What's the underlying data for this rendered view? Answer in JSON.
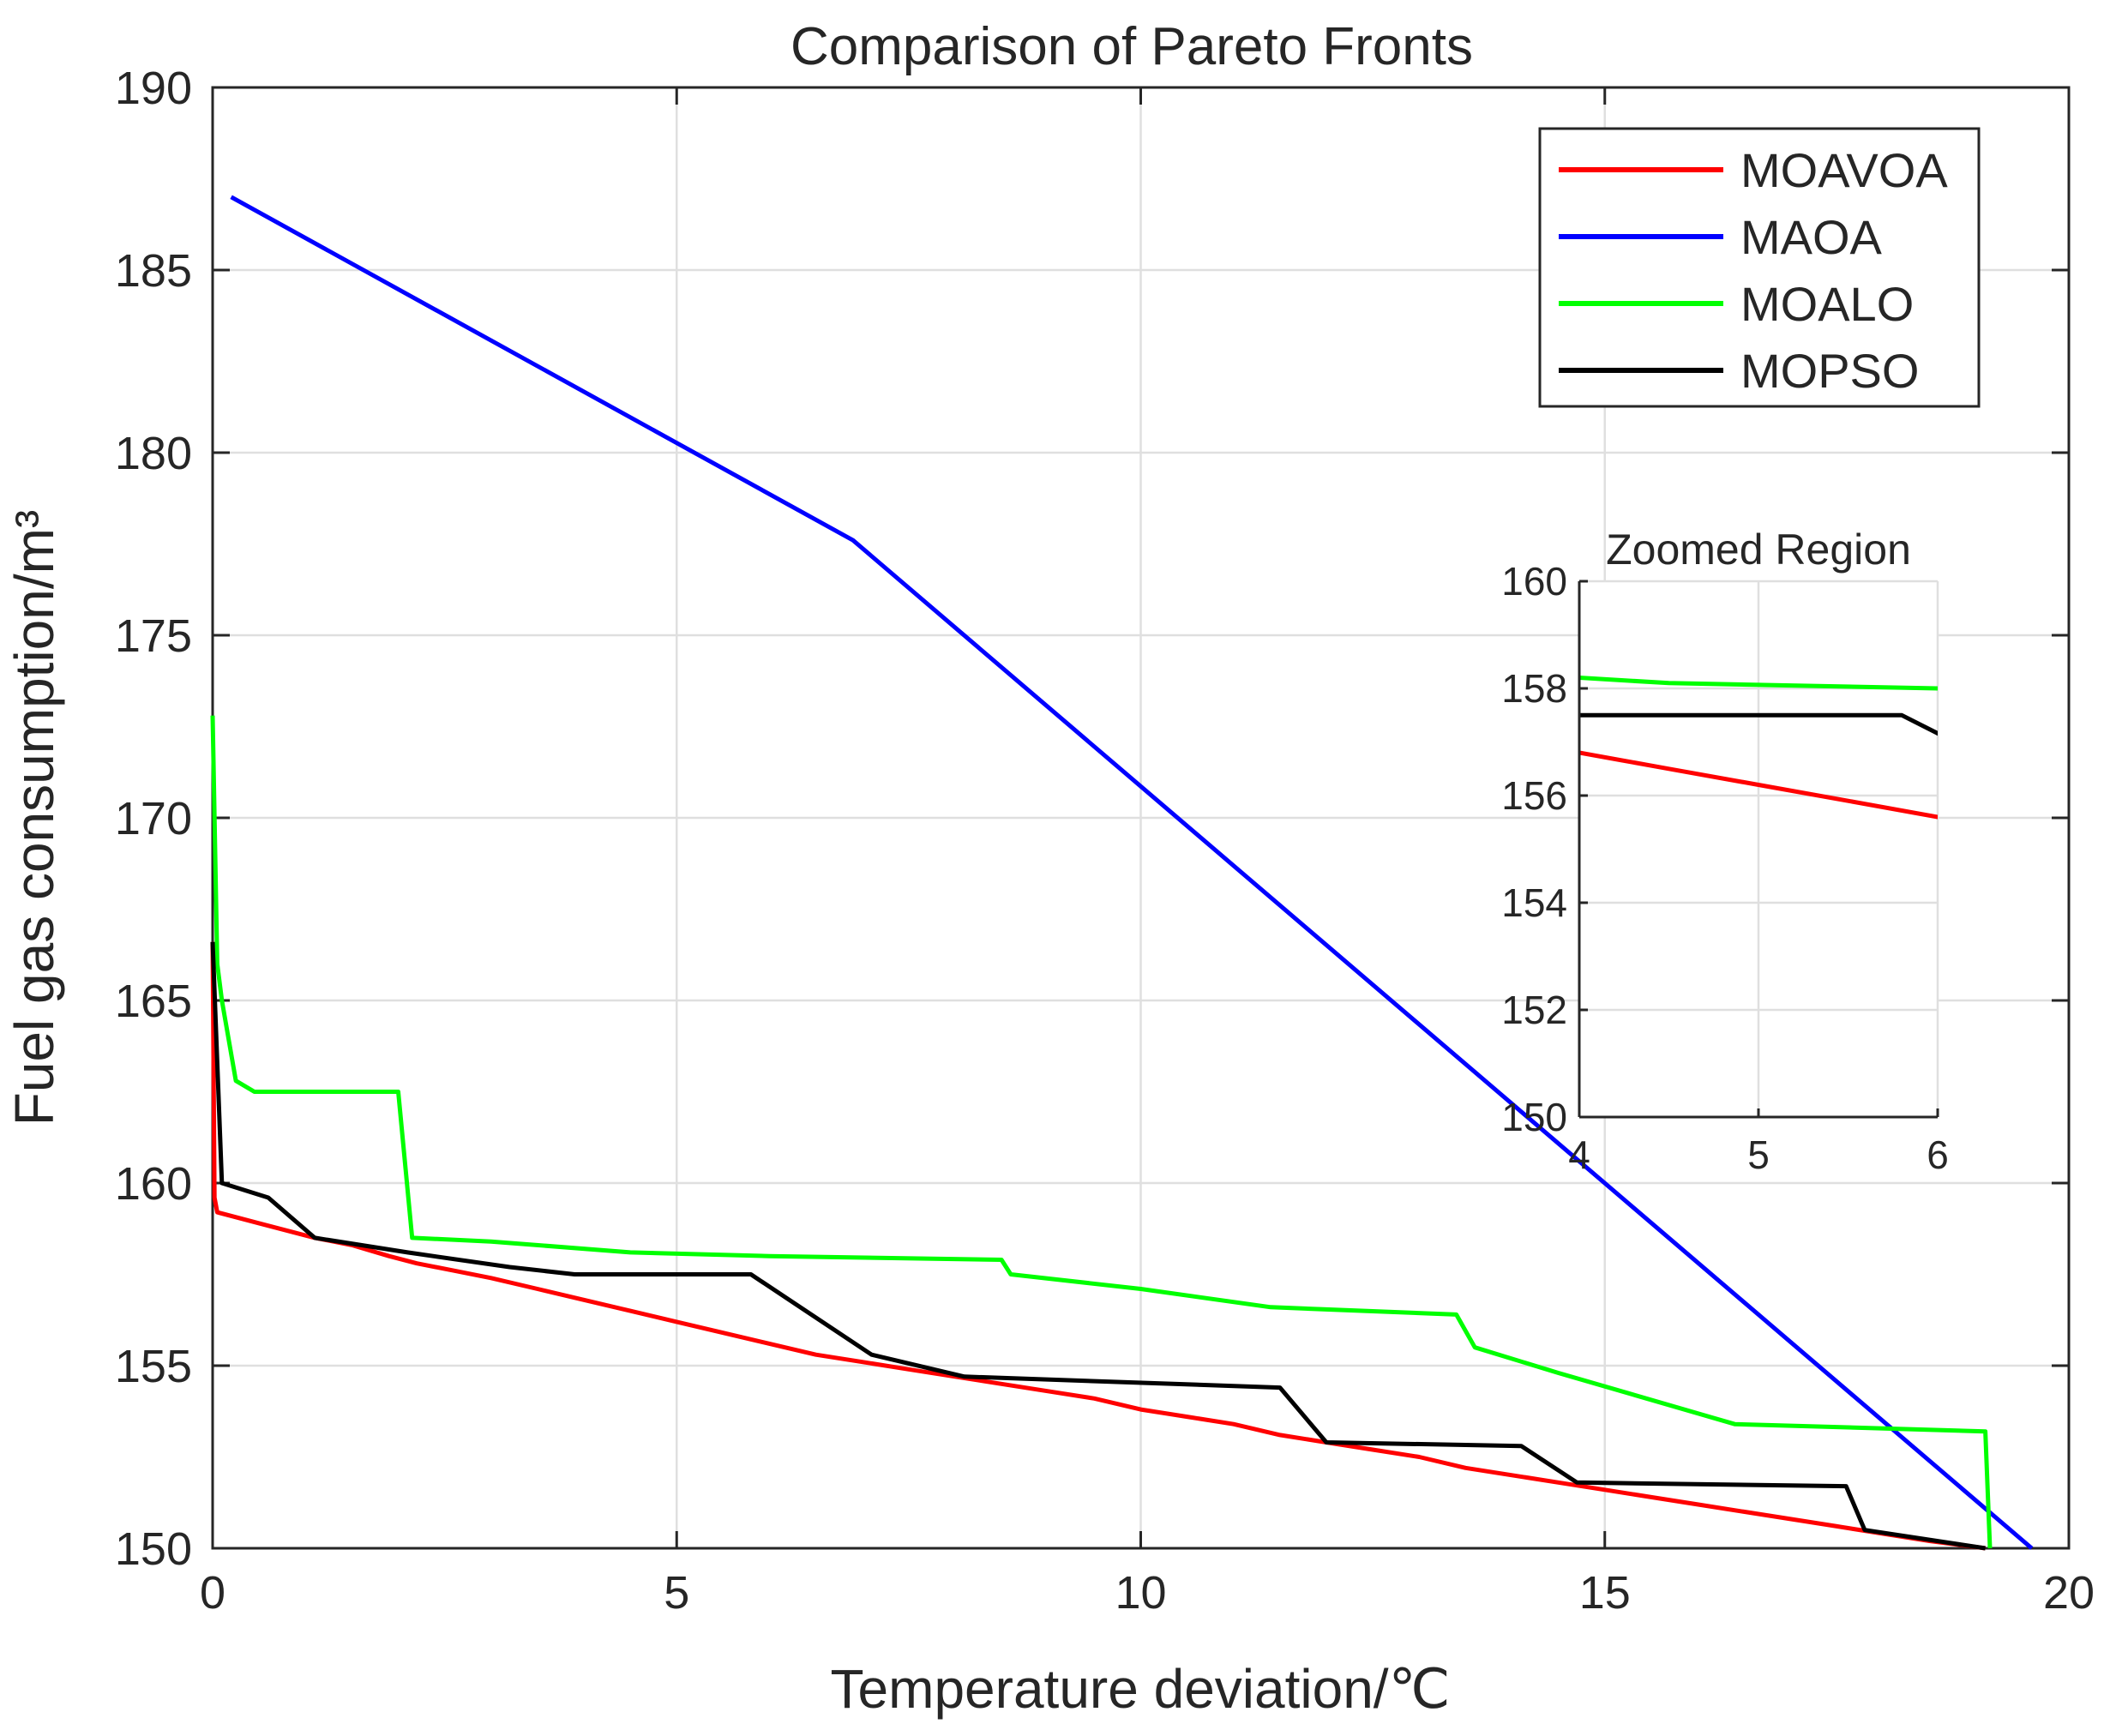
{
  "chart_data": {
    "type": "line",
    "title": "Comparison of Pareto Fronts",
    "xlabel": "Temperature deviation/℃",
    "ylabel": "Fuel gas consumption/m³",
    "xlim": [
      0,
      20
    ],
    "ylim": [
      150,
      190
    ],
    "xticks": [
      0,
      5,
      10,
      15,
      20
    ],
    "yticks": [
      150,
      155,
      160,
      165,
      170,
      175,
      180,
      185,
      190
    ],
    "grid": true,
    "legend_position": "top-right",
    "series": [
      {
        "name": "MOAVOA",
        "color": "#ff0000",
        "points": [
          [
            0,
            166.6
          ],
          [
            0.02,
            159.6
          ],
          [
            0.05,
            159.2
          ],
          [
            0.5,
            158.9
          ],
          [
            1.1,
            158.5
          ],
          [
            1.5,
            158.3
          ],
          [
            1.9,
            158.0
          ],
          [
            2.2,
            157.8
          ],
          [
            2.6,
            157.6
          ],
          [
            3.0,
            157.4
          ],
          [
            3.5,
            157.1
          ],
          [
            4.0,
            156.8
          ],
          [
            4.5,
            156.5
          ],
          [
            5.0,
            156.2
          ],
          [
            5.5,
            155.9
          ],
          [
            6.0,
            155.6
          ],
          [
            6.5,
            155.3
          ],
          [
            7.0,
            155.1
          ],
          [
            7.5,
            154.9
          ],
          [
            8.0,
            154.7
          ],
          [
            8.5,
            154.5
          ],
          [
            9.0,
            154.3
          ],
          [
            9.5,
            154.1
          ],
          [
            10.0,
            153.8
          ],
          [
            10.5,
            153.6
          ],
          [
            11.0,
            153.4
          ],
          [
            11.5,
            153.1
          ],
          [
            12.0,
            152.9
          ],
          [
            12.5,
            152.7
          ],
          [
            13.0,
            152.5
          ],
          [
            13.5,
            152.2
          ],
          [
            14.0,
            152.0
          ],
          [
            14.5,
            151.8
          ],
          [
            15.0,
            151.6
          ],
          [
            15.5,
            151.4
          ],
          [
            16.0,
            151.2
          ],
          [
            16.5,
            151.0
          ],
          [
            17.0,
            150.8
          ],
          [
            17.5,
            150.6
          ],
          [
            18.0,
            150.4
          ],
          [
            18.5,
            150.2
          ],
          [
            19.1,
            150.0
          ]
        ]
      },
      {
        "name": "MAOA",
        "color": "#0000ff",
        "points": [
          [
            0.2,
            187.0
          ],
          [
            6.9,
            177.6
          ],
          [
            19.6,
            150.0
          ]
        ]
      },
      {
        "name": "MOALO",
        "color": "#00ff00",
        "points": [
          [
            0,
            172.8
          ],
          [
            0.05,
            166.0
          ],
          [
            0.1,
            165.0
          ],
          [
            0.25,
            162.8
          ],
          [
            0.45,
            162.5
          ],
          [
            2.0,
            162.5
          ],
          [
            2.15,
            158.5
          ],
          [
            3.0,
            158.4
          ],
          [
            4.5,
            158.1
          ],
          [
            6.0,
            158.0
          ],
          [
            8.5,
            157.9
          ],
          [
            8.6,
            157.5
          ],
          [
            10.0,
            157.1
          ],
          [
            11.4,
            156.6
          ],
          [
            13.4,
            156.4
          ],
          [
            13.6,
            155.5
          ],
          [
            14.5,
            154.8
          ],
          [
            16.4,
            153.4
          ],
          [
            19.1,
            153.2
          ],
          [
            19.15,
            150.0
          ]
        ]
      },
      {
        "name": "MOPSO",
        "color": "#000000",
        "points": [
          [
            0,
            166.6
          ],
          [
            0.1,
            160.0
          ],
          [
            0.6,
            159.6
          ],
          [
            1.1,
            158.5
          ],
          [
            1.6,
            158.3
          ],
          [
            2.1,
            158.1
          ],
          [
            3.2,
            157.7
          ],
          [
            3.9,
            157.5
          ],
          [
            5.8,
            157.5
          ],
          [
            7.1,
            155.3
          ],
          [
            8.1,
            154.7
          ],
          [
            11.5,
            154.4
          ],
          [
            12.0,
            152.9
          ],
          [
            14.1,
            152.8
          ],
          [
            14.7,
            151.8
          ],
          [
            17.6,
            151.7
          ],
          [
            17.8,
            150.5
          ],
          [
            19.1,
            150.0
          ]
        ]
      }
    ],
    "inset": {
      "title": "Zoomed Region",
      "xlim": [
        4,
        6
      ],
      "ylim": [
        150,
        160
      ],
      "xticks": [
        4,
        5,
        6
      ],
      "yticks": [
        150,
        152,
        154,
        156,
        158,
        160
      ],
      "grid": true
    }
  }
}
